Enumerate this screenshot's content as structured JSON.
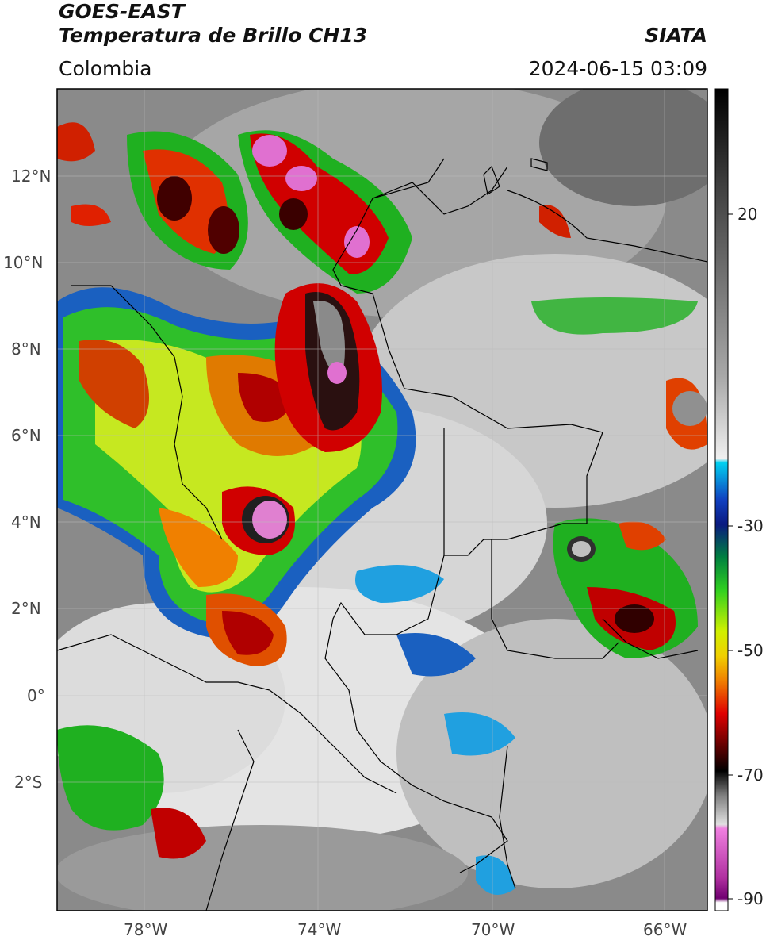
{
  "header": {
    "satellite": "GOES-EAST",
    "product": "Temperatura de Brillo CH13",
    "agency": "SIATA",
    "region": "Colombia",
    "datetime": "2024-06-15 03:09"
  },
  "axes": {
    "lat_ticks": [
      "12°N",
      "10°N",
      "8°N",
      "6°N",
      "4°N",
      "2°N",
      "0°",
      "2°S"
    ],
    "lon_ticks": [
      "78°W",
      "74°W",
      "70°W",
      "66°W"
    ]
  },
  "colorbar": {
    "ticks": [
      "20",
      "-30",
      "-50",
      "-70",
      "-90"
    ],
    "range": [
      -92,
      36
    ],
    "colors": {
      "warm": "#5a5a5a",
      "cool": "#d8d8d8",
      "cyan": "#00c8f0",
      "blue": "#1030a0",
      "green": "#30c020",
      "yellow": "#f0e000",
      "orange": "#f09000",
      "red": "#d00000",
      "darkred": "#400000",
      "black": "#000000",
      "magenta": "#e070d0",
      "purple": "#702080"
    }
  }
}
